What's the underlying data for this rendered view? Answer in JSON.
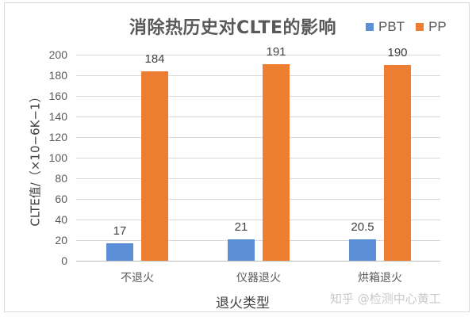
{
  "chart_data": {
    "type": "bar",
    "title": "消除热历史对CLTE的影响",
    "xlabel": "退火类型",
    "ylabel": "CLTE值/（×10−6K−1）",
    "categories": [
      "不退火",
      "仪器退火",
      "烘箱退火"
    ],
    "series": [
      {
        "name": "PBT",
        "color": "#5b8fd6",
        "values": [
          17,
          21,
          20.5
        ]
      },
      {
        "name": "PP",
        "color": "#ed7d31",
        "values": [
          184,
          191,
          190
        ]
      }
    ],
    "data_labels": {
      "PBT": [
        "17",
        "21",
        "20.5"
      ],
      "PP": [
        "184",
        "191",
        "190"
      ]
    },
    "ylim": [
      0,
      200
    ],
    "yticks": [
      "0",
      "20",
      "40",
      "60",
      "80",
      "100",
      "120",
      "140",
      "160",
      "180",
      "200"
    ],
    "grid": true,
    "legend_position": "top-right"
  },
  "legend": {
    "pbt": "PBT",
    "pp": "PP"
  },
  "watermark": "知乎 @检测中心黄工"
}
